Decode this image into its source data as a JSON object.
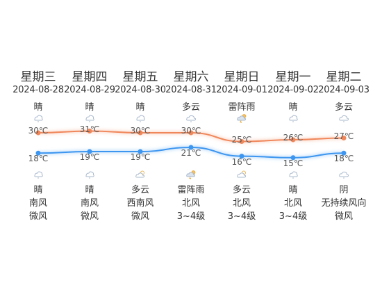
{
  "colors": {
    "high_line": "#f0875a",
    "low_line": "#3d96f0",
    "text": "#333333",
    "icon": "#b8c6d6"
  },
  "days": [
    {
      "weekday": "星期三",
      "date": "2024-08-28",
      "day_weather": "晴",
      "day_icon": "sun-icon",
      "high": "30℃",
      "high_value": 30,
      "low": "18℃",
      "low_value": 18,
      "night_icon": "moon-icon",
      "night_weather": "晴",
      "wind_direction": "南风",
      "wind_level": "微风"
    },
    {
      "weekday": "星期四",
      "date": "2024-08-29",
      "day_weather": "晴",
      "day_icon": "sun-icon",
      "high": "31℃",
      "high_value": 31,
      "low": "19℃",
      "low_value": 19,
      "night_icon": "moon-icon",
      "night_weather": "晴",
      "wind_direction": "南风",
      "wind_level": "微风"
    },
    {
      "weekday": "星期五",
      "date": "2024-08-30",
      "day_weather": "晴",
      "day_icon": "sun-icon",
      "high": "30℃",
      "high_value": 30,
      "low": "19℃",
      "low_value": 19,
      "night_icon": "cloudy-night-icon",
      "night_weather": "多云",
      "wind_direction": "西南风",
      "wind_level": "微风"
    },
    {
      "weekday": "星期六",
      "date": "2024-08-31",
      "day_weather": "多云",
      "day_icon": "cloud-icon",
      "high": "30℃",
      "high_value": 30,
      "low": "21℃",
      "low_value": 21,
      "night_icon": "thunderstorm-icon",
      "night_weather": "雷阵雨",
      "wind_direction": "北风",
      "wind_level": "3~4级"
    },
    {
      "weekday": "星期日",
      "date": "2024-09-01",
      "day_weather": "雷阵雨",
      "day_icon": "thunderstorm-icon",
      "high": "25℃",
      "high_value": 25,
      "low": "16℃",
      "low_value": 16,
      "night_icon": "cloudy-night-icon",
      "night_weather": "多云",
      "wind_direction": "北风",
      "wind_level": "3~4级"
    },
    {
      "weekday": "星期一",
      "date": "2024-09-02",
      "day_weather": "晴",
      "day_icon": "sun-icon",
      "high": "26℃",
      "high_value": 26,
      "low": "15℃",
      "low_value": 15,
      "night_icon": "moon-icon",
      "night_weather": "晴",
      "wind_direction": "北风",
      "wind_level": "3~4级"
    },
    {
      "weekday": "星期二",
      "date": "2024-09-03",
      "day_weather": "多云",
      "day_icon": "cloud-icon",
      "high": "27℃",
      "high_value": 27,
      "low": "18℃",
      "low_value": 18,
      "night_icon": "overcast-icon",
      "night_weather": "阴",
      "wind_direction": "无持续风向",
      "wind_level": "微风"
    }
  ]
}
